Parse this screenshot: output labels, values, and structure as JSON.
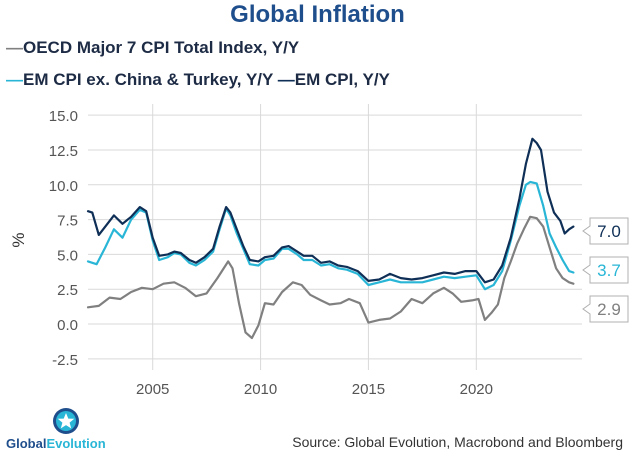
{
  "chart_data": {
    "type": "line",
    "title": "Global Inflation",
    "ylabel": "%",
    "xlabel": "",
    "ylim": [
      -3.3,
      15.8
    ],
    "xlim": [
      2002.0,
      2024.9
    ],
    "y_ticks": [
      "15.0",
      "12.5",
      "10.0",
      "7.5",
      "5.0",
      "2.5",
      "0.0",
      "-2.5"
    ],
    "y_tick_values": [
      15.0,
      12.5,
      10.0,
      7.5,
      5.0,
      2.5,
      0.0,
      -2.5
    ],
    "x_ticks": [
      "2005",
      "2010",
      "2015",
      "2020"
    ],
    "x_tick_values": [
      2005,
      2010,
      2015,
      2020
    ],
    "grid": true,
    "legend_position": "top-left",
    "series": [
      {
        "name": "OECD Major 7 CPI Total Index, Y/Y",
        "color": "#808080",
        "end_label": "2.9",
        "x": [
          2002.0,
          2002.5,
          2003.0,
          2003.5,
          2004.0,
          2004.5,
          2005.0,
          2005.5,
          2006.0,
          2006.5,
          2007.0,
          2007.5,
          2008.0,
          2008.5,
          2008.7,
          2009.0,
          2009.3,
          2009.6,
          2009.9,
          2010.2,
          2010.6,
          2011.0,
          2011.5,
          2011.9,
          2012.3,
          2012.8,
          2013.2,
          2013.7,
          2014.1,
          2014.6,
          2015.0,
          2015.5,
          2016.0,
          2016.5,
          2017.0,
          2017.5,
          2018.0,
          2018.5,
          2018.9,
          2019.3,
          2019.8,
          2020.1,
          2020.4,
          2020.7,
          2021.0,
          2021.3,
          2021.6,
          2021.9,
          2022.2,
          2022.5,
          2022.8,
          2023.1,
          2023.4,
          2023.7,
          2024.0,
          2024.3,
          2024.5
        ],
        "values": [
          1.2,
          1.3,
          1.9,
          1.8,
          2.3,
          2.6,
          2.5,
          2.9,
          3.0,
          2.6,
          2.0,
          2.2,
          3.3,
          4.5,
          4.0,
          1.5,
          -0.6,
          -1.0,
          -0.1,
          1.5,
          1.4,
          2.3,
          3.0,
          2.8,
          2.1,
          1.7,
          1.4,
          1.5,
          1.8,
          1.5,
          0.1,
          0.3,
          0.4,
          0.9,
          1.8,
          1.5,
          2.2,
          2.6,
          2.2,
          1.6,
          1.7,
          1.8,
          0.3,
          0.8,
          1.4,
          3.3,
          4.5,
          5.8,
          6.8,
          7.7,
          7.6,
          7.0,
          5.5,
          4.0,
          3.3,
          3.0,
          2.9
        ]
      },
      {
        "name": "EM CPI ex. China & Turkey, Y/Y",
        "color": "#29b6d6",
        "end_label": "3.7",
        "x": [
          2002.0,
          2002.4,
          2002.8,
          2003.2,
          2003.6,
          2004.0,
          2004.4,
          2004.7,
          2005.0,
          2005.3,
          2005.7,
          2006.0,
          2006.3,
          2006.7,
          2007.0,
          2007.4,
          2007.8,
          2008.1,
          2008.4,
          2008.6,
          2008.9,
          2009.2,
          2009.5,
          2009.9,
          2010.2,
          2010.6,
          2011.0,
          2011.3,
          2011.7,
          2012.0,
          2012.4,
          2012.8,
          2013.2,
          2013.6,
          2014.0,
          2014.5,
          2015.0,
          2015.5,
          2016.0,
          2016.5,
          2017.0,
          2017.5,
          2018.0,
          2018.5,
          2019.0,
          2019.5,
          2020.0,
          2020.4,
          2020.8,
          2021.2,
          2021.6,
          2022.0,
          2022.3,
          2022.5,
          2022.8,
          2023.1,
          2023.4,
          2023.7,
          2024.0,
          2024.3,
          2024.5
        ],
        "values": [
          4.5,
          4.3,
          5.5,
          6.8,
          6.2,
          7.5,
          8.2,
          8.0,
          6.0,
          4.6,
          4.8,
          5.1,
          5.0,
          4.4,
          4.2,
          4.6,
          5.2,
          6.8,
          8.3,
          7.8,
          6.5,
          5.4,
          4.3,
          4.2,
          4.6,
          4.7,
          5.4,
          5.4,
          5.0,
          4.6,
          4.6,
          4.2,
          4.3,
          4.0,
          3.9,
          3.6,
          2.8,
          3.0,
          3.2,
          3.0,
          3.0,
          3.0,
          3.2,
          3.4,
          3.3,
          3.4,
          3.5,
          2.5,
          2.8,
          3.8,
          6.0,
          8.5,
          10.0,
          10.2,
          10.1,
          8.5,
          6.5,
          5.5,
          4.6,
          3.8,
          3.7
        ]
      },
      {
        "name": "EM CPI, Y/Y",
        "color": "#0f2f57",
        "end_label": "7.0",
        "x": [
          2002.0,
          2002.2,
          2002.5,
          2002.8,
          2003.2,
          2003.6,
          2004.0,
          2004.4,
          2004.7,
          2005.0,
          2005.3,
          2005.7,
          2006.0,
          2006.3,
          2006.7,
          2007.0,
          2007.4,
          2007.8,
          2008.1,
          2008.4,
          2008.6,
          2008.9,
          2009.2,
          2009.5,
          2009.9,
          2010.2,
          2010.6,
          2011.0,
          2011.3,
          2011.7,
          2012.0,
          2012.4,
          2012.8,
          2013.2,
          2013.6,
          2014.0,
          2014.5,
          2015.0,
          2015.5,
          2016.0,
          2016.5,
          2017.0,
          2017.5,
          2018.0,
          2018.5,
          2019.0,
          2019.5,
          2020.0,
          2020.4,
          2020.8,
          2021.2,
          2021.6,
          2022.0,
          2022.3,
          2022.6,
          2022.8,
          2023.0,
          2023.3,
          2023.6,
          2023.9,
          2024.1,
          2024.3,
          2024.5
        ],
        "values": [
          8.1,
          8.0,
          6.4,
          7.0,
          7.8,
          7.2,
          7.7,
          8.4,
          8.1,
          6.2,
          4.9,
          5.0,
          5.2,
          5.1,
          4.6,
          4.4,
          4.8,
          5.4,
          7.0,
          8.4,
          8.0,
          6.8,
          5.6,
          4.6,
          4.5,
          4.8,
          4.9,
          5.5,
          5.6,
          5.2,
          4.9,
          4.9,
          4.4,
          4.5,
          4.2,
          4.1,
          3.8,
          3.1,
          3.2,
          3.6,
          3.3,
          3.2,
          3.3,
          3.5,
          3.7,
          3.6,
          3.8,
          3.8,
          3.0,
          3.2,
          4.2,
          6.2,
          9.0,
          11.5,
          13.3,
          13.0,
          12.5,
          9.5,
          8.0,
          7.4,
          6.5,
          6.8,
          7.0
        ]
      }
    ]
  },
  "source": "Source: Global Evolution, Macrobond and Bloomberg",
  "logo": {
    "text_main": "Global",
    "text_accent": "Evolution"
  },
  "legend": {
    "line1": "OECD Major 7 CPI Total Index, Y/Y",
    "line2a": "EM CPI ex. China & Turkey, Y/Y",
    "line2b": "EM CPI, Y/Y",
    "dash": "—"
  }
}
